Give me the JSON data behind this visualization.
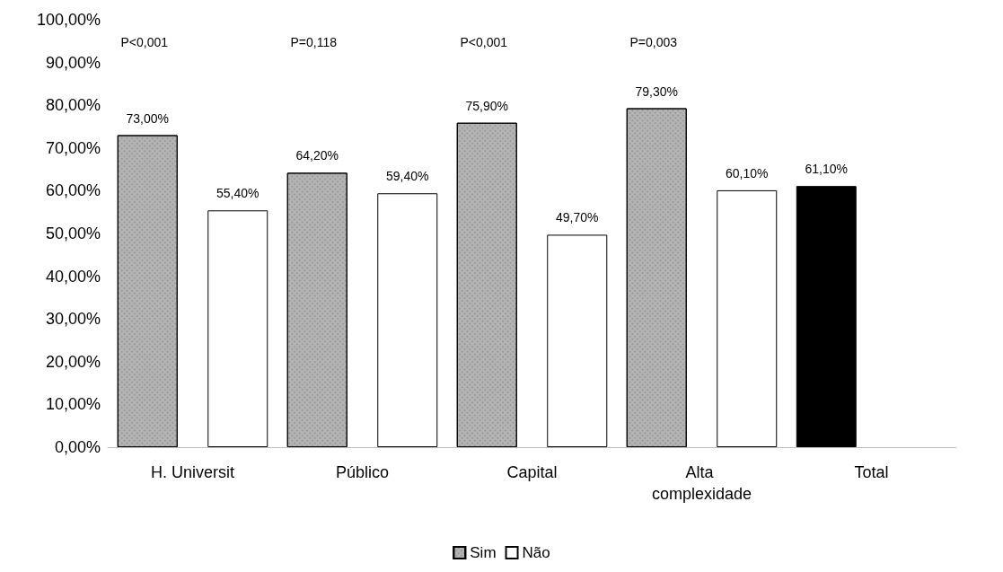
{
  "chart_data": {
    "type": "bar",
    "categories": [
      "H. Universit",
      "Público",
      "Capital",
      "Alta complexidade",
      "Total"
    ],
    "series": [
      {
        "name": "Sim",
        "color": "#b4b4b4",
        "values": [
          73.0,
          64.2,
          75.9,
          79.3,
          null
        ],
        "value_labels": [
          "73,00%",
          "64,20%",
          "75,90%",
          "79,30%",
          null
        ]
      },
      {
        "name": "Não",
        "color": "#ffffff",
        "values": [
          55.4,
          59.4,
          49.7,
          60.1,
          null
        ],
        "value_labels": [
          "55,40%",
          "59,40%",
          "49,70%",
          "60,10%",
          null
        ]
      },
      {
        "color": "#000000",
        "values": [
          null,
          null,
          null,
          null,
          61.1
        ],
        "value_labels": [
          null,
          null,
          null,
          null,
          "61,10%"
        ]
      }
    ],
    "ylim": [
      0,
      100
    ],
    "yticks": [
      {
        "value": 0,
        "label": "0,00%"
      },
      {
        "value": 10,
        "label": "10,00%"
      },
      {
        "value": 20,
        "label": "20,00%"
      },
      {
        "value": 30,
        "label": "30,00%"
      },
      {
        "value": 40,
        "label": "40,00%"
      },
      {
        "value": 50,
        "label": "50,00%"
      },
      {
        "value": 60,
        "label": "60,00%"
      },
      {
        "value": 70,
        "label": "70,00%"
      },
      {
        "value": 80,
        "label": "80,00%"
      },
      {
        "value": 90,
        "label": "90,00%"
      },
      {
        "value": 100,
        "label": "100,00%"
      }
    ],
    "annotations": [
      "P<0,001",
      "P=0,118",
      "P<0,001",
      "P=0,003"
    ],
    "grid": false,
    "legend": "bottom"
  }
}
